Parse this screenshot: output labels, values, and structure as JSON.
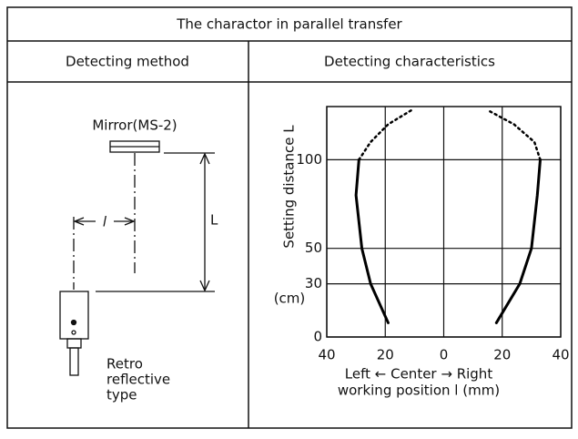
{
  "header": {
    "title": "The charactor in parallel transfer"
  },
  "columns": [
    "Detecting method",
    "Detecting characteristics"
  ],
  "diagram": {
    "mirror_label": "Mirror(MS-2)",
    "distance_label": "L",
    "offset_label": "l",
    "sensor_label": [
      "Retro",
      "reflective",
      "type"
    ]
  },
  "chart_data": {
    "type": "line",
    "y_label": "Setting distance L",
    "y_unit": "(cm)",
    "x_label": [
      "Left ← Center → Right",
      "working position l  (mm)"
    ],
    "xlim": [
      -40,
      40
    ],
    "xticks": [
      {
        "value": -40,
        "label": "40"
      },
      {
        "value": -20,
        "label": "20"
      },
      0,
      20,
      40
    ],
    "ylim": [
      0,
      130
    ],
    "yticks": [
      0,
      30,
      50,
      100
    ],
    "grid": true,
    "series": [
      {
        "color": "#000000",
        "style": "solid",
        "x": [
          -19,
          -25,
          -28,
          -30,
          -29
        ],
        "y": [
          8,
          30,
          50,
          80,
          100
        ]
      },
      {
        "color": "#000000",
        "style": "dotted",
        "x": [
          -29,
          -25,
          -19,
          -11
        ],
        "y": [
          100,
          110,
          120,
          128
        ]
      },
      {
        "color": "#000000",
        "style": "solid",
        "x": [
          18,
          26,
          30,
          32,
          33
        ],
        "y": [
          8,
          30,
          50,
          80,
          100
        ]
      },
      {
        "color": "#000000",
        "style": "dotted",
        "x": [
          33,
          31,
          24,
          15
        ],
        "y": [
          100,
          110,
          120,
          128
        ]
      }
    ]
  }
}
